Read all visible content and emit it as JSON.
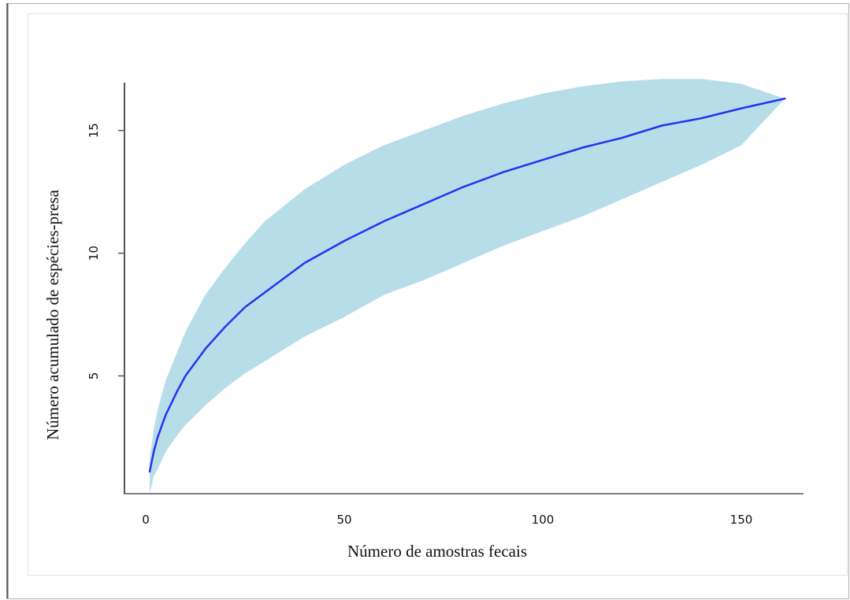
{
  "chart_data": {
    "type": "line",
    "title": "",
    "xlabel": "Número de amostras fecais",
    "ylabel": "Número acumulado de espécies-presa",
    "xlim": [
      0,
      165
    ],
    "ylim": [
      0.2,
      17.3
    ],
    "xticks": [
      0,
      50,
      100,
      150
    ],
    "yticks": [
      5,
      10,
      15
    ],
    "grid": false,
    "legend": "none",
    "colors": {
      "line": "#2433f0",
      "band": "#b7dde9",
      "axis": "#555555"
    },
    "series": [
      {
        "x": [
          1,
          2,
          3,
          5,
          8,
          10,
          15,
          20,
          25,
          30,
          40,
          50,
          60,
          70,
          80,
          90,
          100,
          110,
          120,
          130,
          140,
          150,
          161
        ],
        "y": [
          1.1,
          1.9,
          2.5,
          3.4,
          4.4,
          5.0,
          6.1,
          7.0,
          7.8,
          8.4,
          9.6,
          10.5,
          11.3,
          12.0,
          12.7,
          13.3,
          13.8,
          14.3,
          14.7,
          15.2,
          15.5,
          15.9,
          16.3
        ],
        "lower": [
          0.2,
          0.9,
          1.2,
          1.9,
          2.6,
          3.0,
          3.8,
          4.5,
          5.1,
          5.6,
          6.6,
          7.4,
          8.3,
          8.9,
          9.6,
          10.3,
          10.9,
          11.5,
          12.2,
          12.9,
          13.6,
          14.4,
          16.3
        ],
        "upper": [
          1.6,
          2.8,
          3.6,
          4.8,
          6.0,
          6.8,
          8.3,
          9.4,
          10.4,
          11.3,
          12.6,
          13.6,
          14.4,
          15.0,
          15.6,
          16.1,
          16.5,
          16.8,
          17.0,
          17.1,
          17.1,
          16.9,
          16.3
        ]
      }
    ]
  }
}
